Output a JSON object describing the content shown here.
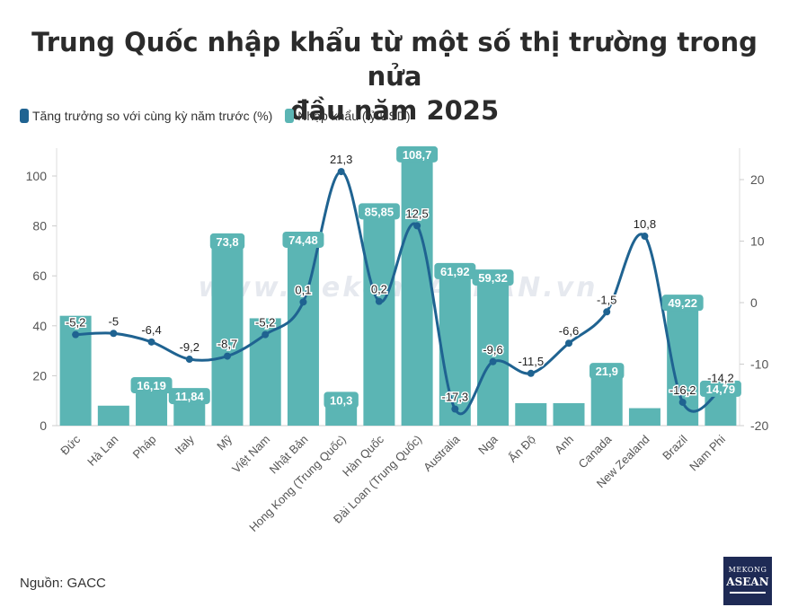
{
  "title_line1": "Trung Quốc nhập khẩu từ một số thị trường trong nửa",
  "title_line2": "đầu năm 2025",
  "source": "Nguồn: GACC",
  "watermark": "www.MekongASEAN.vn",
  "logo": {
    "top": "MEKONG",
    "main": "ASEAN"
  },
  "colors": {
    "bar": "#5bb5b4",
    "line": "#1f6391",
    "label_bg": "#5bb5b4"
  },
  "chart_data": {
    "type": "bar",
    "title": "Trung Quốc nhập khẩu từ một số thị trường trong nửa đầu năm 2025",
    "categories": [
      "Đức",
      "Hà Lan",
      "Pháp",
      "Italy",
      "Mỹ",
      "Việt Nam",
      "Nhật Bản",
      "Hong Kong (Trung Quốc)",
      "Hàn Quốc",
      "Đài Loan (Trung Quốc)",
      "Australia",
      "Nga",
      "Ấn Độ",
      "Anh",
      "Canada",
      "New Zealand",
      "Brazil",
      "Nam Phi"
    ],
    "series": [
      {
        "name": "Nhập khẩu (tỷ USD)",
        "type": "bar",
        "axis": "left",
        "values": [
          44,
          8,
          16.19,
          11.84,
          73.8,
          43,
          74.48,
          10.3,
          85.85,
          108.7,
          61.92,
          59.32,
          9,
          9,
          21.9,
          7,
          49.22,
          14.79
        ],
        "labels": [
          "",
          "",
          "16,19",
          "11,84",
          "73,8",
          "",
          "74,48",
          "10,3",
          "85,85",
          "108,7",
          "61,92",
          "59,32",
          "",
          "",
          "21,9",
          "",
          "49,22",
          "14,79"
        ]
      },
      {
        "name": "Tăng trưởng so với cùng kỳ năm trước (%)",
        "type": "line",
        "axis": "right",
        "values": [
          -5.2,
          -5,
          -6.4,
          -9.2,
          -8.7,
          -5.2,
          0.1,
          21.3,
          0.2,
          12.5,
          -17.3,
          -9.6,
          -11.5,
          -6.6,
          -1.5,
          10.8,
          -16.2,
          -14.2
        ],
        "labels": [
          "-5,2",
          "-5",
          "-6,4",
          "-9,2",
          "-8,7",
          "-5,2",
          "0,1",
          "21,3",
          "0,2",
          "12,5",
          "-17,3",
          "-9,6",
          "-11,5",
          "-6,6",
          "-1,5",
          "10,8",
          "-16,2",
          "-14,2"
        ]
      }
    ],
    "ylim_left": [
      0,
      110
    ],
    "yticks_left": [
      "0",
      "20",
      "40",
      "60",
      "80",
      "100"
    ],
    "ylim_right": [
      -20,
      25
    ],
    "yticks_right": [
      "-20",
      "-10",
      "0",
      "10",
      "20"
    ],
    "legend": "top-left"
  }
}
